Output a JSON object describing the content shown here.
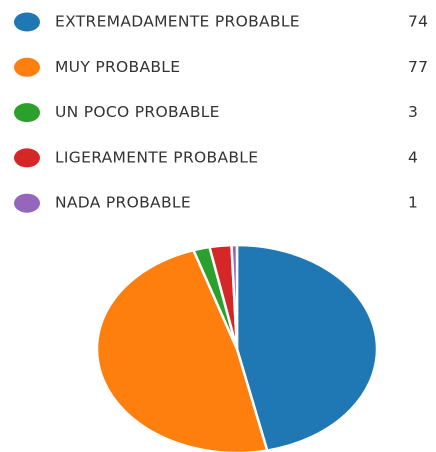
{
  "chart_data": {
    "type": "pie",
    "categories": [
      "EXTREMADAMENTE PROBABLE",
      "MUY PROBABLE",
      "UN POCO PROBABLE",
      "LIGERAMENTE PROBABLE",
      "NADA PROBABLE"
    ],
    "values": [
      74,
      77,
      3,
      4,
      1
    ],
    "colors": [
      "#1f77b4",
      "#ff7f0e",
      "#2ca02c",
      "#d62728",
      "#9467bd"
    ],
    "legend": "top"
  }
}
